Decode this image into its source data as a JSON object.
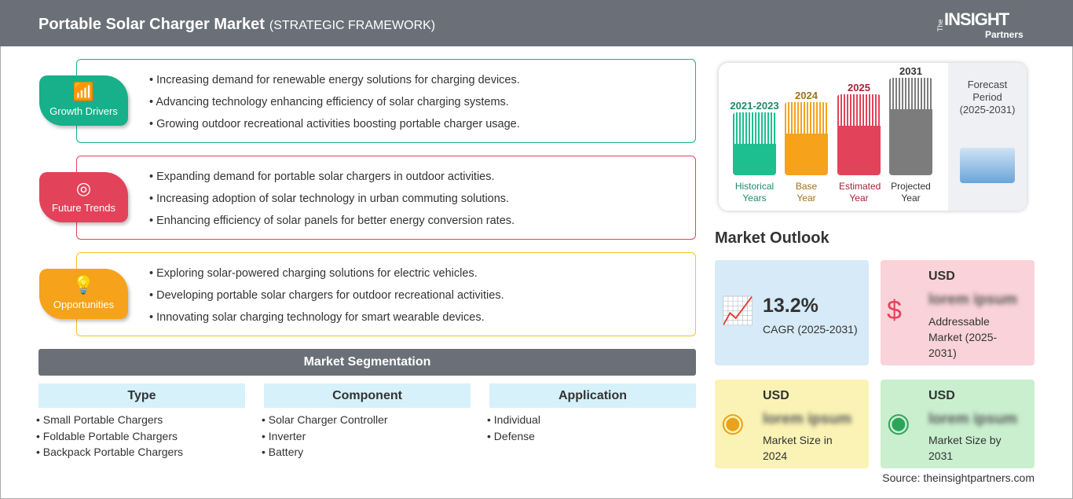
{
  "header": {
    "title": "Portable Solar Charger Market",
    "subtitle": "(STRATEGIC FRAMEWORK)"
  },
  "logo": {
    "the": "The",
    "insight": "INSIGHT",
    "partners": "Partners"
  },
  "sections": [
    {
      "label": "Growth Drivers",
      "icon": "chart-growth-icon",
      "color": "#17b08a",
      "items": [
        "Increasing demand for renewable energy solutions for charging devices.",
        "Advancing technology enhancing efficiency of solar charging systems.",
        "Growing outdoor recreational activities boosting portable charger usage."
      ]
    },
    {
      "label": "Future Trends",
      "icon": "target-icon",
      "color": "#e2435a",
      "items": [
        "Expanding demand for portable solar chargers in outdoor activities.",
        "Increasing adoption of solar technology in urban commuting solutions.",
        "Enhancing efficiency of solar panels for better energy conversion rates."
      ]
    },
    {
      "label": "Opportunities",
      "icon": "lightbulb-hand-icon",
      "color": "#f7a21b",
      "items": [
        "Exploring solar-powered charging solutions for electric vehicles.",
        "Developing portable solar chargers for outdoor recreational activities.",
        "Innovating solar charging technology for smart wearable devices."
      ]
    }
  ],
  "segmentation": {
    "title": "Market Segmentation",
    "columns": [
      {
        "header": "Type",
        "items": [
          "Small Portable Chargers",
          "Foldable Portable Chargers",
          "Backpack Portable Chargers"
        ]
      },
      {
        "header": "Component",
        "items": [
          "Solar Charger Controller",
          "Inverter",
          "Battery"
        ]
      },
      {
        "header": "Application",
        "items": [
          "Individual",
          "Defense"
        ]
      }
    ]
  },
  "timeline": {
    "bars": [
      {
        "year": "2021-2023",
        "label": "Historical Years",
        "color": "#1dbf8f",
        "text_color": "#1f8a6b"
      },
      {
        "year": "2024",
        "label": "Base Year",
        "color": "#f7a21b",
        "text_color": "#a0721c"
      },
      {
        "year": "2025",
        "label": "Estimated Year",
        "color": "#e2435a",
        "text_color": "#a3243a"
      },
      {
        "year": "2031",
        "label": "Projected Year",
        "color": "#7c7c7c",
        "text_color": "#333333"
      }
    ],
    "forecast": {
      "title": "Forecast Period",
      "range": "(2025-2031)"
    }
  },
  "outlook": {
    "title": "Market Outlook",
    "cagr": {
      "value": "13.2%",
      "label": "CAGR (2025-2031)"
    },
    "addressable": {
      "currency": "USD",
      "value": "lorem ipsum",
      "label": "Addressable Market (2025-2031)"
    },
    "size2024": {
      "currency": "USD",
      "value": "lorem ipsum",
      "label": "Market Size in 2024"
    },
    "size2031": {
      "currency": "USD",
      "value": "lorem ipsum",
      "label": "Market Size by 2031"
    }
  },
  "source": "Source: theinsightpartners.com"
}
